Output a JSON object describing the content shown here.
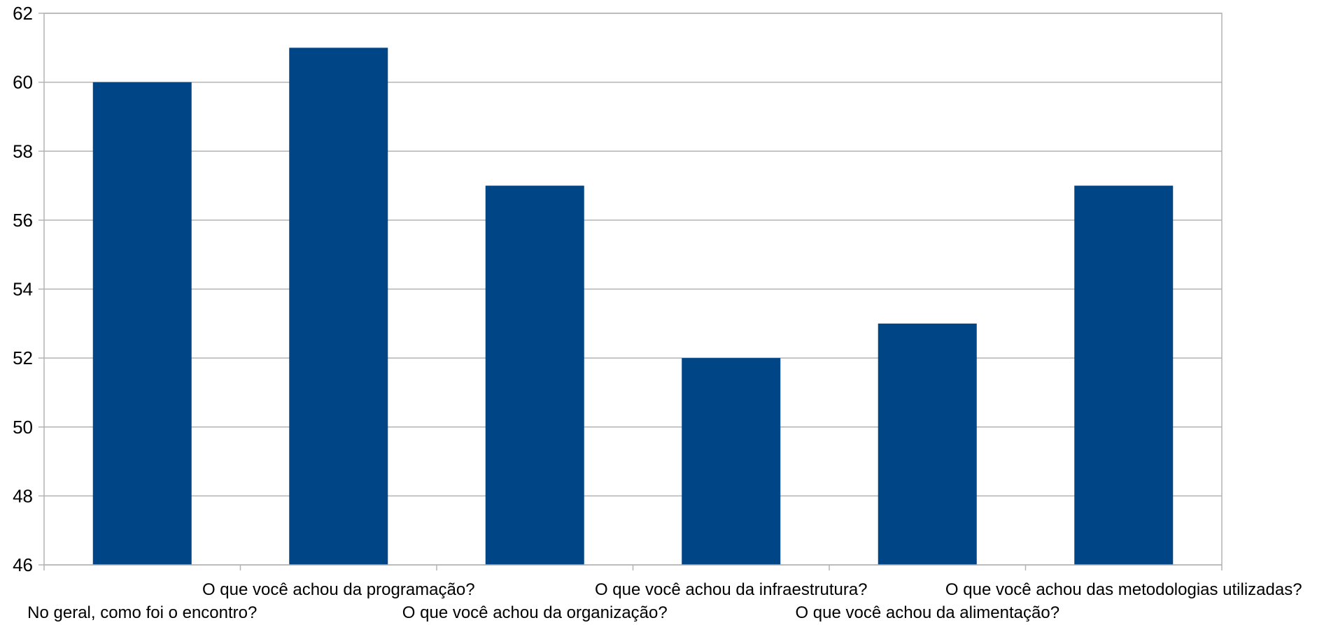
{
  "chart_data": {
    "type": "bar",
    "title": "",
    "xlabel": "",
    "ylabel": "",
    "categories": [
      "No geral, como foi o encontro?",
      "O que você achou da programação?",
      "O que você achou da organização?",
      "O que você achou da infraestrutura?",
      "O que você achou da alimentação?",
      "O que você achou das metodologias utilizadas?"
    ],
    "values": [
      60,
      61,
      57,
      52,
      53,
      57
    ],
    "ylim": [
      46,
      62
    ],
    "yticks": [
      46,
      48,
      50,
      52,
      54,
      56,
      58,
      60,
      62
    ],
    "grid": true,
    "legend": "none",
    "colors": {
      "bar": "#004586",
      "grid": "#b3b3b3",
      "axis": "#b3b3b3"
    }
  }
}
